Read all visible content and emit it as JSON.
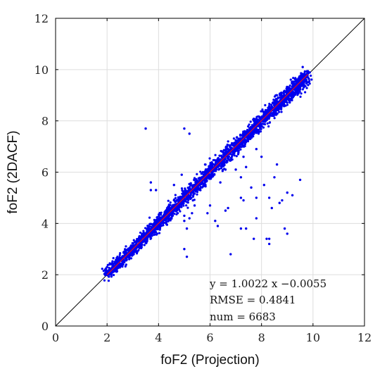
{
  "chart_data": {
    "type": "scatter",
    "title": "",
    "xlabel": "foF2 (Projection)",
    "ylabel": "foF2 (2DACF)",
    "xlim": [
      0,
      12
    ],
    "ylim": [
      0,
      12
    ],
    "xticks": [
      "0",
      "2",
      "4",
      "6",
      "8",
      "10",
      "12"
    ],
    "yticks": [
      "0",
      "2",
      "4",
      "6",
      "8",
      "10",
      "12"
    ],
    "grid": true,
    "colors": {
      "points": "#0000ee",
      "fit_line": "#ee1111",
      "identity_line": "#000000",
      "grid": "#dddddd"
    },
    "series": [
      {
        "values_summary": "6683 points clustered tightly along the 1:1 line from about (2,2.1) to (9.8,10), with scattered outliers below the line between x=6 and x=9.5",
        "points": [
          [
            2.0,
            2.3
          ],
          [
            2.1,
            2.4
          ],
          [
            2.2,
            2.2
          ],
          [
            2.3,
            2.5
          ],
          [
            2.4,
            2.4
          ],
          [
            2.5,
            2.6
          ],
          [
            2.6,
            2.5
          ],
          [
            2.7,
            2.9
          ],
          [
            2.8,
            2.7
          ],
          [
            2.9,
            3.0
          ],
          [
            3.0,
            3.1
          ],
          [
            3.1,
            2.9
          ],
          [
            3.2,
            3.3
          ],
          [
            3.3,
            3.2
          ],
          [
            3.4,
            3.5
          ],
          [
            3.5,
            3.4
          ],
          [
            3.6,
            3.7
          ],
          [
            3.7,
            3.6
          ],
          [
            3.8,
            3.9
          ],
          [
            3.9,
            3.8
          ],
          [
            4.0,
            4.1
          ],
          [
            4.1,
            4.0
          ],
          [
            4.2,
            4.3
          ],
          [
            4.3,
            4.2
          ],
          [
            4.4,
            4.5
          ],
          [
            4.5,
            4.4
          ],
          [
            4.6,
            4.7
          ],
          [
            4.7,
            4.6
          ],
          [
            4.8,
            4.9
          ],
          [
            4.9,
            4.8
          ],
          [
            5.0,
            5.1
          ],
          [
            5.1,
            5.0
          ],
          [
            5.2,
            5.3
          ],
          [
            5.3,
            5.2
          ],
          [
            5.4,
            5.5
          ],
          [
            5.5,
            5.4
          ],
          [
            5.6,
            5.7
          ],
          [
            5.7,
            5.6
          ],
          [
            5.8,
            5.9
          ],
          [
            5.9,
            5.8
          ],
          [
            6.0,
            6.1
          ],
          [
            6.1,
            6.0
          ],
          [
            6.2,
            6.3
          ],
          [
            6.3,
            6.2
          ],
          [
            6.4,
            6.5
          ],
          [
            6.5,
            6.4
          ],
          [
            6.6,
            6.7
          ],
          [
            6.7,
            6.6
          ],
          [
            6.8,
            6.9
          ],
          [
            6.9,
            6.8
          ],
          [
            7.0,
            7.1
          ],
          [
            7.1,
            7.0
          ],
          [
            7.2,
            7.3
          ],
          [
            7.3,
            7.2
          ],
          [
            7.4,
            7.5
          ],
          [
            7.5,
            7.4
          ],
          [
            7.6,
            7.7
          ],
          [
            7.7,
            7.6
          ],
          [
            7.8,
            7.9
          ],
          [
            7.9,
            7.8
          ],
          [
            8.0,
            8.1
          ],
          [
            8.1,
            8.0
          ],
          [
            8.2,
            8.3
          ],
          [
            8.3,
            8.2
          ],
          [
            8.4,
            8.5
          ],
          [
            8.5,
            8.4
          ],
          [
            8.6,
            8.7
          ],
          [
            8.7,
            8.6
          ],
          [
            8.8,
            8.9
          ],
          [
            8.9,
            8.8
          ],
          [
            9.0,
            9.1
          ],
          [
            9.1,
            9.0
          ],
          [
            9.2,
            9.3
          ],
          [
            9.3,
            9.2
          ],
          [
            9.4,
            9.5
          ],
          [
            9.5,
            9.4
          ],
          [
            9.6,
            9.7
          ],
          [
            9.7,
            9.6
          ],
          [
            9.8,
            9.9
          ],
          [
            9.6,
            10.1
          ],
          [
            3.5,
            7.7
          ],
          [
            5.2,
            7.5
          ],
          [
            5.0,
            7.7
          ],
          [
            4.6,
            5.5
          ],
          [
            3.7,
            5.3
          ],
          [
            3.7,
            5.6
          ],
          [
            3.9,
            5.3
          ],
          [
            5.0,
            4.3
          ],
          [
            5.2,
            4.2
          ],
          [
            5.1,
            3.8
          ],
          [
            5.3,
            4.4
          ],
          [
            5.0,
            3.0
          ],
          [
            5.1,
            2.7
          ],
          [
            6.0,
            4.7
          ],
          [
            6.2,
            4.1
          ],
          [
            6.4,
            5.6
          ],
          [
            6.6,
            6.1
          ],
          [
            6.8,
            6.8
          ],
          [
            7.0,
            6.1
          ],
          [
            7.2,
            5.8
          ],
          [
            7.4,
            6.2
          ],
          [
            7.6,
            5.4
          ],
          [
            7.8,
            5.0
          ],
          [
            7.2,
            5.0
          ],
          [
            7.3,
            4.9
          ],
          [
            7.8,
            6.9
          ],
          [
            8.0,
            6.6
          ],
          [
            8.1,
            5.5
          ],
          [
            8.3,
            5.0
          ],
          [
            8.4,
            4.6
          ],
          [
            8.5,
            5.8
          ],
          [
            8.6,
            6.3
          ],
          [
            8.8,
            4.9
          ],
          [
            9.0,
            5.2
          ],
          [
            9.2,
            5.1
          ],
          [
            9.0,
            3.6
          ],
          [
            8.3,
            3.4
          ],
          [
            8.2,
            3.4
          ],
          [
            8.3,
            3.2
          ],
          [
            7.4,
            3.8
          ],
          [
            7.7,
            3.4
          ],
          [
            7.2,
            3.8
          ],
          [
            7.8,
            4.2
          ],
          [
            6.7,
            4.6
          ],
          [
            6.6,
            4.5
          ],
          [
            8.9,
            3.8
          ],
          [
            9.5,
            5.7
          ],
          [
            8.7,
            4.8
          ],
          [
            7.3,
            6.6
          ],
          [
            6.3,
            3.9
          ],
          [
            6.8,
            2.8
          ],
          [
            5.9,
            4.4
          ],
          [
            5.4,
            4.7
          ],
          [
            5.2,
            5.4
          ],
          [
            4.9,
            5.9
          ],
          [
            5.0,
            4.1
          ]
        ]
      }
    ],
    "fit": {
      "slope": 1.0022,
      "intercept": -0.0055,
      "x_range": [
        2,
        9.8
      ]
    },
    "annotations": [
      "y = 1.0022 x −0.0055",
      "RMSE = 0.4841",
      "num = 6683"
    ]
  }
}
